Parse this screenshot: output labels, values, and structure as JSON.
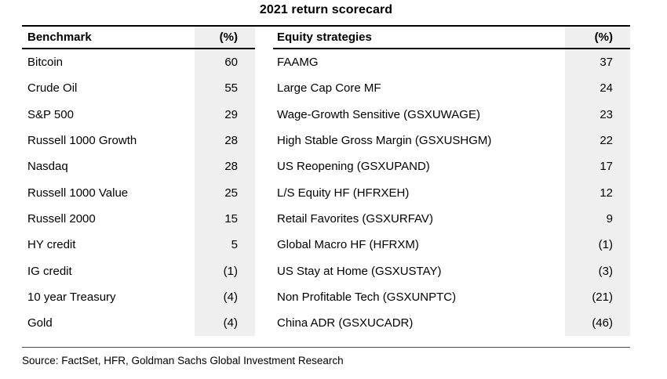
{
  "chart_data": {
    "type": "table",
    "title": "2021 return scorecard",
    "tables": [
      {
        "name_header": "Benchmark",
        "value_header": "(%)",
        "rows": [
          {
            "name": "Bitcoin",
            "value": "60"
          },
          {
            "name": "Crude Oil",
            "value": "55"
          },
          {
            "name": "S&P 500",
            "value": "29"
          },
          {
            "name": "Russell 1000 Growth",
            "value": "28"
          },
          {
            "name": "Nasdaq",
            "value": "28"
          },
          {
            "name": "Russell 1000 Value",
            "value": "25"
          },
          {
            "name": "Russell 2000",
            "value": "15"
          },
          {
            "name": "HY credit",
            "value": "5"
          },
          {
            "name": "IG credit",
            "value": "(1)"
          },
          {
            "name": "10 year Treasury",
            "value": "(4)"
          },
          {
            "name": "Gold",
            "value": "(4)"
          }
        ]
      },
      {
        "name_header": "Equity strategies",
        "value_header": "(%)",
        "rows": [
          {
            "name": "FAAMG",
            "value": "37"
          },
          {
            "name": "Large Cap Core MF",
            "value": "24"
          },
          {
            "name": "Wage-Growth Sensitive (GSXUWAGE)",
            "value": "23"
          },
          {
            "name": "High Stable Gross Margin (GSXUSHGM)",
            "value": "22"
          },
          {
            "name": "US Reopening (GSXUPAND)",
            "value": "17"
          },
          {
            "name": "L/S Equity HF (HFRXEH)",
            "value": "12"
          },
          {
            "name": "Retail Favorites (GSXURFAV)",
            "value": "9"
          },
          {
            "name": "Global Macro HF (HFRXM)",
            "value": "(1)"
          },
          {
            "name": "US Stay at Home (GSXUSTAY)",
            "value": "(3)"
          },
          {
            "name": "Non Profitable Tech (GSXUNPTC)",
            "value": "(21)"
          },
          {
            "name": "China ADR (GSXUCADR)",
            "value": "(46)"
          }
        ]
      }
    ],
    "source_note": "Source: FactSet, HFR, Goldman Sachs Global Investment Research",
    "layout": {
      "value_column_shade": "#efefef",
      "rule_color": "#000000",
      "negative_format": "parentheses",
      "grid": "horizontal-rules-only",
      "legend": "none"
    }
  }
}
